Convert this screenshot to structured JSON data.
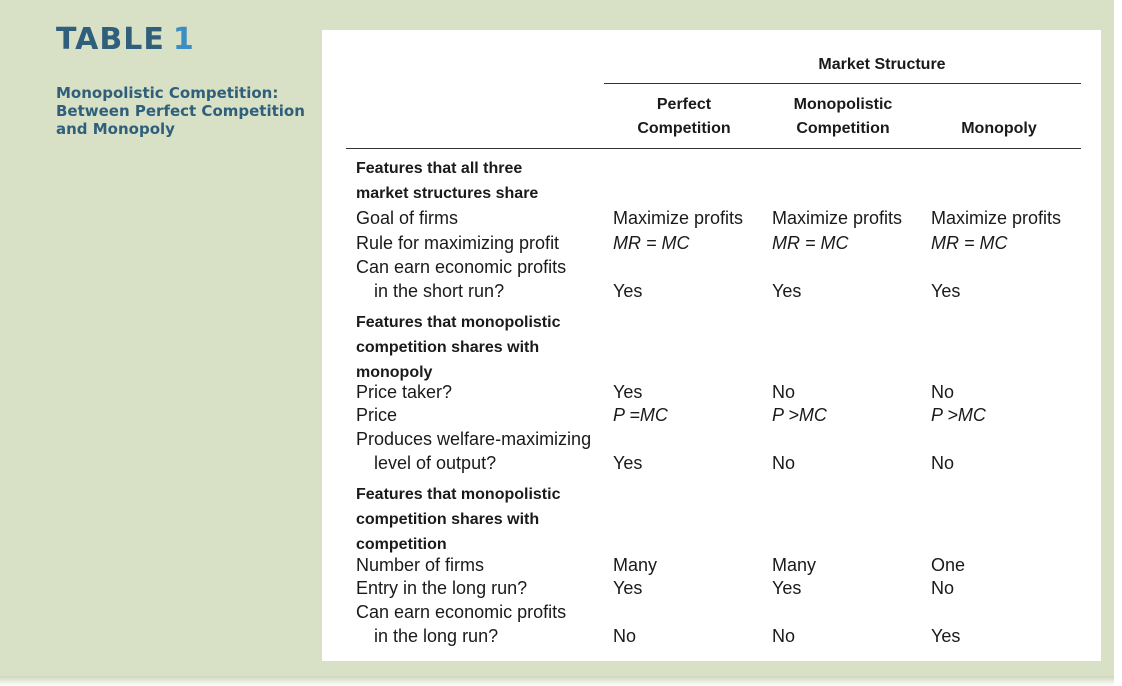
{
  "table": {
    "label": "TABLE",
    "number": "1",
    "caption_lines": [
      "Monopolistic Competition:",
      "Between Perfect Competition",
      "and Monopoly"
    ]
  },
  "header": {
    "group": "Market Structure",
    "columns": [
      [
        "Perfect",
        "Competition"
      ],
      [
        "Monopolistic",
        "Competition"
      ],
      [
        "",
        "Monopoly"
      ]
    ]
  },
  "sections": [
    {
      "title_lines": [
        "Features that all three",
        "market structures share"
      ],
      "rows": [
        {
          "label": "Goal of firms",
          "cont": "",
          "values": [
            "Maximize profits",
            "Maximize profits",
            "Maximize profits"
          ]
        },
        {
          "label": "Rule for maximizing profit",
          "cont": "",
          "values": [
            "MR = MC",
            "MR = MC",
            "MR = MC"
          ]
        },
        {
          "label": "Can earn economic profits",
          "cont": "in the short run?",
          "values": [
            "Yes",
            "Yes",
            "Yes"
          ]
        }
      ]
    },
    {
      "title_lines": [
        "Features that monopolistic",
        "competition shares with",
        "monopoly"
      ],
      "rows": [
        {
          "label": "Price taker?",
          "cont": "",
          "values": [
            "Yes",
            "No",
            "No"
          ]
        },
        {
          "label": "Price",
          "cont": "",
          "values": [
            "P =MC",
            "P >MC",
            "P >MC"
          ]
        },
        {
          "label": "Produces welfare-maximizing",
          "cont": "level of output?",
          "values": [
            "Yes",
            "No",
            "No"
          ]
        }
      ]
    },
    {
      "title_lines": [
        "Features that monopolistic",
        "competition shares with",
        "competition"
      ],
      "rows": [
        {
          "label": "Number of firms",
          "cont": "",
          "values": [
            "Many",
            "Many",
            "One"
          ]
        },
        {
          "label": "Entry in the long run?",
          "cont": "",
          "values": [
            "Yes",
            "Yes",
            "No"
          ]
        },
        {
          "label": "Can earn economic profits",
          "cont": "in the long run?",
          "values": [
            "No",
            "No",
            "Yes"
          ]
        }
      ]
    }
  ]
}
